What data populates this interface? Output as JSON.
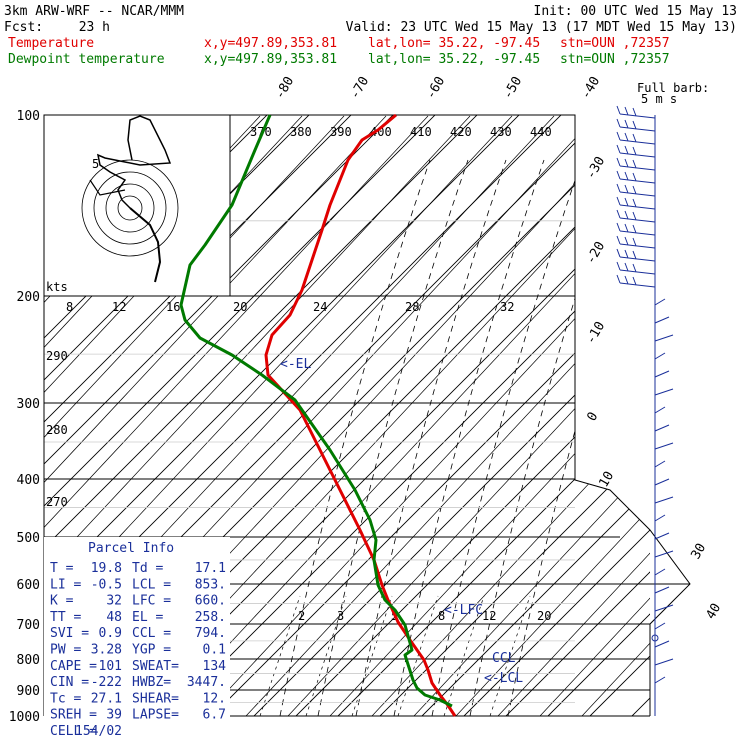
{
  "header": {
    "title": "3km ARW-WRF -- NCAR/MMM",
    "init": "Init: 00 UTC Wed 15 May 13",
    "fcst_label": "Fcst:",
    "fcst_hours": "23 h",
    "valid": "Valid: 23 UTC Wed 15 May 13 (17 MDT Wed 15 May 13)"
  },
  "legend": [
    {
      "name": "Temperature",
      "xy": "x,y=497.89,353.81",
      "latlon": "lat,lon= 35.22, -97.45",
      "stn": "stn=OUN ,72357",
      "color": "#e00000"
    },
    {
      "name": "Dewpoint temperature",
      "xy": "x,y=497.89,353.81",
      "latlon": "lat,lon= 35.22, -97.45",
      "stn": "stn=OUN ,72357",
      "color": "#007a00"
    }
  ],
  "wind_key": {
    "line1": "Full barb:",
    "line2": "5 m s"
  },
  "parcel": {
    "title": "Parcel Info",
    "rows": [
      [
        "T  =",
        "19.8",
        "Td =",
        "17.1"
      ],
      [
        "LI =",
        "-0.5",
        "LCL =",
        "853."
      ],
      [
        "K  =",
        "32",
        "LFC =",
        "660."
      ],
      [
        "TT =",
        "48",
        "EL =",
        "258."
      ],
      [
        "SVI =",
        "0.9",
        "CCL =",
        "794."
      ],
      [
        "PW =",
        "3.28",
        "YGP =",
        "0.1"
      ],
      [
        "CAPE =",
        "101",
        "SWEAT=",
        "134"
      ],
      [
        "CIN =",
        "-222",
        "HWBZ=",
        "3447."
      ],
      [
        "Tc =",
        "27.1",
        "SHEAR=",
        "12."
      ],
      [
        "SREH =",
        "39",
        "LAPSE=",
        "6.7"
      ],
      [
        "CELL =",
        "154/02",
        "",
        ""
      ]
    ]
  },
  "annotations": {
    "el": "<-EL",
    "lfc": "<-LFC",
    "ccl": "CCL",
    "lcl": "<-LCL"
  },
  "hodograph": {
    "label": "kts",
    "marker": "5"
  },
  "chart_data": {
    "type": "line",
    "title": "",
    "y_ticks": [
      "100",
      "200",
      "300",
      "400",
      "500",
      "600",
      "700",
      "800",
      "900",
      "1000"
    ],
    "isotherm_labels": [
      "-80",
      "-70",
      "-60",
      "-50",
      "-40",
      "-30",
      "-20",
      "-10",
      "0",
      "10",
      "30",
      "40"
    ],
    "theta_labels": [
      "370",
      "380",
      "390",
      "400",
      "410",
      "420",
      "430",
      "440"
    ],
    "theta_left_labels": [
      "290",
      "280",
      "270"
    ],
    "mixing_ratio_labels": [
      "2",
      "3",
      "5",
      "8",
      "12",
      "20"
    ],
    "hodo_speed_labels": [
      "8",
      "12",
      "16",
      "20",
      "24",
      "28",
      "32"
    ],
    "series": [
      {
        "name": "Temperature",
        "color": "#e00000",
        "x": [
          455,
          447,
          440,
          432,
          428,
          424,
          410,
          398,
          388,
          382,
          374,
          360,
          335,
          300,
          268,
          266,
          272,
          290,
          302,
          312,
          322,
          330,
          340,
          348,
          362,
          378,
          396
        ],
        "y": [
          716,
          704,
          695,
          683,
          670,
          660,
          640,
          622,
          600,
          585,
          560,
          530,
          480,
          410,
          375,
          355,
          335,
          315,
          290,
          260,
          230,
          205,
          180,
          160,
          140,
          130,
          115
        ]
      },
      {
        "name": "Dewpoint temperature",
        "color": "#007a00",
        "x": [
          452,
          440,
          425,
          417,
          413,
          405,
          412,
          405,
          395,
          385,
          378,
          374,
          376,
          370,
          355,
          330,
          295,
          262,
          232,
          200,
          185,
          181,
          190,
          205,
          232,
          255,
          270
        ],
        "y": [
          706,
          700,
          695,
          688,
          680,
          655,
          650,
          625,
          610,
          600,
          585,
          560,
          540,
          520,
          490,
          450,
          400,
          375,
          355,
          338,
          320,
          305,
          265,
          245,
          205,
          150,
          115
        ]
      }
    ]
  }
}
